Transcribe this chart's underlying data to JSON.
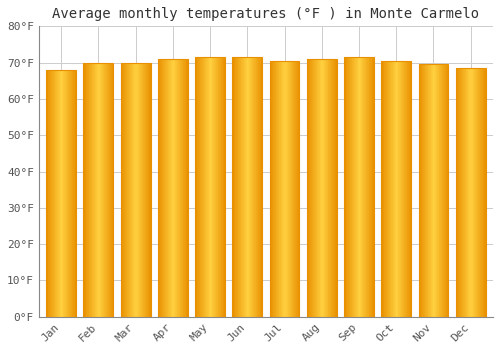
{
  "title": "Average monthly temperatures (°F ) in Monte Carmelo",
  "months": [
    "Jan",
    "Feb",
    "Mar",
    "Apr",
    "May",
    "Jun",
    "Jul",
    "Aug",
    "Sep",
    "Oct",
    "Nov",
    "Dec"
  ],
  "values": [
    68,
    70,
    70,
    71,
    71.5,
    71.5,
    70.5,
    71,
    71.5,
    70.5,
    69.5,
    68.5
  ],
  "bar_edge_color": "#E89000",
  "bar_center_color": "#FFD040",
  "ylim": [
    0,
    80
  ],
  "yticks": [
    0,
    10,
    20,
    30,
    40,
    50,
    60,
    70,
    80
  ],
  "ytick_labels": [
    "0°F",
    "10°F",
    "20°F",
    "30°F",
    "40°F",
    "50°F",
    "60°F",
    "70°F",
    "80°F"
  ],
  "background_color": "#FFFFFF",
  "grid_color": "#CCCCCC",
  "title_fontsize": 10,
  "tick_fontsize": 8,
  "font_family": "monospace",
  "bar_width": 0.8,
  "n_gradient_strips": 40
}
